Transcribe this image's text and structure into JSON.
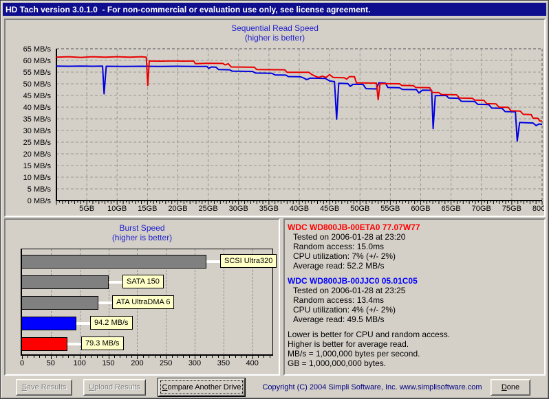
{
  "window": {
    "title": "HD Tach version 3.0.1.0  - For non-commercial or evaluation use only, see license agreement."
  },
  "colors": {
    "titlebar_bg": "#0e0e8e",
    "dialog_bg": "#d4d0c8",
    "chart_title": "#2222cc",
    "label_box_bg": "#ffffc8",
    "copyright_text": "#000080"
  },
  "chart_data": [
    {
      "type": "line",
      "title": "Sequential Read Speed",
      "subtitle": "(higher is better)",
      "xlabel": "",
      "ylabel": "",
      "xlim": [
        0,
        80
      ],
      "ylim": [
        0,
        65
      ],
      "grid": true,
      "legend_position": "none",
      "y_tick_step": 5,
      "y_tick_suffix": " MB/s",
      "x_ticks": [
        5,
        10,
        15,
        20,
        25,
        30,
        35,
        40,
        45,
        50,
        55,
        60,
        65,
        70,
        75,
        80
      ],
      "x_tick_suffix": "GB",
      "series": [
        {
          "name": "WDC WD800JB-00ETA0 77.07W77",
          "color": "#e80000",
          "points": [
            [
              0,
              61.4
            ],
            [
              2,
              61.6
            ],
            [
              4,
              61.3
            ],
            [
              6,
              61.6
            ],
            [
              8,
              61.4
            ],
            [
              10,
              61.6
            ],
            [
              12,
              61.4
            ],
            [
              14,
              61.6
            ],
            [
              14.8,
              61.4
            ],
            [
              15.05,
              49.3
            ],
            [
              15.3,
              59.8
            ],
            [
              17,
              59.7
            ],
            [
              19,
              59.8
            ],
            [
              21,
              59.7
            ],
            [
              22.6,
              59.8
            ],
            [
              22.9,
              58.6
            ],
            [
              25,
              58.8
            ],
            [
              27.4,
              58.7
            ],
            [
              27.8,
              58.1
            ],
            [
              28.3,
              58.6
            ],
            [
              28.8,
              57.2
            ],
            [
              32.6,
              57.1
            ],
            [
              33,
              56.1
            ],
            [
              37.6,
              56.0
            ],
            [
              38,
              54.9
            ],
            [
              41.6,
              54.9
            ],
            [
              42,
              54.1
            ],
            [
              42.6,
              53.3
            ],
            [
              43.2,
              52.7
            ],
            [
              43.8,
              53.3
            ],
            [
              44.4,
              52.7
            ],
            [
              45,
              53.9
            ],
            [
              45.6,
              52.7
            ],
            [
              47.4,
              52.6
            ],
            [
              47.8,
              52.0
            ],
            [
              48.3,
              53.1
            ],
            [
              49.1,
              53.0
            ],
            [
              49.4,
              50.4
            ],
            [
              52.7,
              50.3
            ],
            [
              53,
              43.2
            ],
            [
              53.3,
              50.1
            ],
            [
              56.5,
              50.0
            ],
            [
              56.9,
              49.3
            ],
            [
              58.8,
              49.2
            ],
            [
              59.2,
              48.4
            ],
            [
              61.5,
              48.3
            ],
            [
              61.9,
              46.3
            ],
            [
              63,
              46.2
            ],
            [
              63.4,
              45.4
            ],
            [
              65.9,
              45.3
            ],
            [
              66.4,
              43.9
            ],
            [
              68.5,
              43.8
            ],
            [
              68.9,
              43.0
            ],
            [
              70.4,
              42.9
            ],
            [
              70.9,
              41.5
            ],
            [
              72.4,
              41.4
            ],
            [
              72.9,
              40.0
            ],
            [
              74.4,
              39.9
            ],
            [
              74.9,
              38.4
            ],
            [
              76.4,
              38.3
            ],
            [
              76.9,
              36.9
            ],
            [
              78.2,
              36.8
            ],
            [
              78.5,
              35.3
            ],
            [
              79.3,
              35.2
            ],
            [
              79.6,
              34.1
            ],
            [
              80,
              34.0
            ]
          ]
        },
        {
          "name": "WDC WD800JB-00JJC0 05.01C05",
          "color": "#0000e0",
          "points": [
            [
              0,
              57.6
            ],
            [
              2,
              57.5
            ],
            [
              4,
              57.6
            ],
            [
              6,
              57.5
            ],
            [
              7.6,
              57.6
            ],
            [
              7.85,
              45.7
            ],
            [
              8.2,
              57.5
            ],
            [
              11,
              57.4
            ],
            [
              14,
              57.5
            ],
            [
              17,
              57.4
            ],
            [
              20,
              57.5
            ],
            [
              23,
              57.4
            ],
            [
              24.8,
              57.4
            ],
            [
              25.1,
              56.6
            ],
            [
              25.5,
              57.2
            ],
            [
              26.3,
              57.1
            ],
            [
              26.7,
              56.1
            ],
            [
              28.5,
              56.0
            ],
            [
              29,
              55.4
            ],
            [
              32.3,
              55.3
            ],
            [
              32.8,
              54.6
            ],
            [
              35.5,
              54.5
            ],
            [
              36,
              53.8
            ],
            [
              37.8,
              53.7
            ],
            [
              38.2,
              53.1
            ],
            [
              40.2,
              53.0
            ],
            [
              40.7,
              52.5
            ],
            [
              41.2,
              51.8
            ],
            [
              41.8,
              52.4
            ],
            [
              44.3,
              52.3
            ],
            [
              45,
              51.2
            ],
            [
              45.8,
              50.9
            ],
            [
              46.15,
              34.8
            ],
            [
              46.5,
              50.2
            ],
            [
              48,
              50.1
            ],
            [
              48.4,
              48.9
            ],
            [
              48.9,
              49.8
            ],
            [
              50.5,
              49.7
            ],
            [
              51,
              47.9
            ],
            [
              52.7,
              47.8
            ],
            [
              53.1,
              50.4
            ],
            [
              54.2,
              50.3
            ],
            [
              54.6,
              48.4
            ],
            [
              56.5,
              48.3
            ],
            [
              57,
              47.6
            ],
            [
              59.3,
              47.5
            ],
            [
              59.7,
              46.1
            ],
            [
              60.3,
              47.3
            ],
            [
              61.8,
              47.2
            ],
            [
              62.05,
              30.8
            ],
            [
              62.4,
              44.9
            ],
            [
              64.2,
              45.0
            ],
            [
              64.6,
              43.9
            ],
            [
              66.2,
              43.8
            ],
            [
              66.7,
              42.5
            ],
            [
              68.9,
              42.4
            ],
            [
              69.4,
              41.2
            ],
            [
              71.2,
              41.1
            ],
            [
              71.7,
              39.6
            ],
            [
              73.4,
              39.5
            ],
            [
              73.9,
              38.1
            ],
            [
              75.6,
              38.0
            ],
            [
              75.9,
              25.4
            ],
            [
              76.3,
              33.4
            ],
            [
              78.5,
              33.2
            ],
            [
              79,
              32.1
            ],
            [
              79.5,
              32.8
            ],
            [
              80,
              32.6
            ]
          ]
        }
      ]
    },
    {
      "type": "bar",
      "title": "Burst Speed",
      "subtitle": "(higher is better)",
      "orientation": "horizontal",
      "xlim": [
        0,
        435
      ],
      "x_ticks": [
        0,
        50,
        100,
        150,
        200,
        250,
        300,
        350,
        400
      ],
      "grid": true,
      "bars": [
        {
          "label": "SCSI Ultra320",
          "value": 320,
          "color": "#808080"
        },
        {
          "label": "SATA 150",
          "value": 150,
          "color": "#808080"
        },
        {
          "label": "ATA UltraDMA 6",
          "value": 133,
          "color": "#808080"
        },
        {
          "label": "94.2 MB/s",
          "value": 94.2,
          "color": "#0000ff"
        },
        {
          "label": "79.3 MB/s",
          "value": 79.3,
          "color": "#ff0000"
        }
      ]
    }
  ],
  "info": {
    "drives": [
      {
        "name": "WDC WD800JB-00ETA0 77.07W77",
        "color": "#ff0000",
        "lines": [
          "Tested on 2006-01-28 at 23:20",
          "Random access: 15.0ms",
          "CPU utilization: 7% (+/- 2%)",
          "Average read: 52.2 MB/s"
        ]
      },
      {
        "name": "WDC WD800JB-00JJC0 05.01C05",
        "color": "#0000ff",
        "lines": [
          "Tested on 2006-01-28 at 23:25",
          "Random access: 13.4ms",
          "CPU utilization: 4% (+/- 2%)",
          "Average read: 49.5 MB/s"
        ]
      }
    ],
    "notes": [
      "Lower is better for CPU and random access.",
      "Higher is better for average read.",
      "MB/s = 1,000,000 bytes per second.",
      "GB = 1,000,000,000 bytes."
    ]
  },
  "buttons": {
    "save": "Save Results",
    "upload": "Upload Results",
    "compare": "Compare Another Drive",
    "done": "Done"
  },
  "footer": {
    "copyright": "Copyright (C) 2004 Simpli Software, Inc. www.simplisoftware.com"
  }
}
